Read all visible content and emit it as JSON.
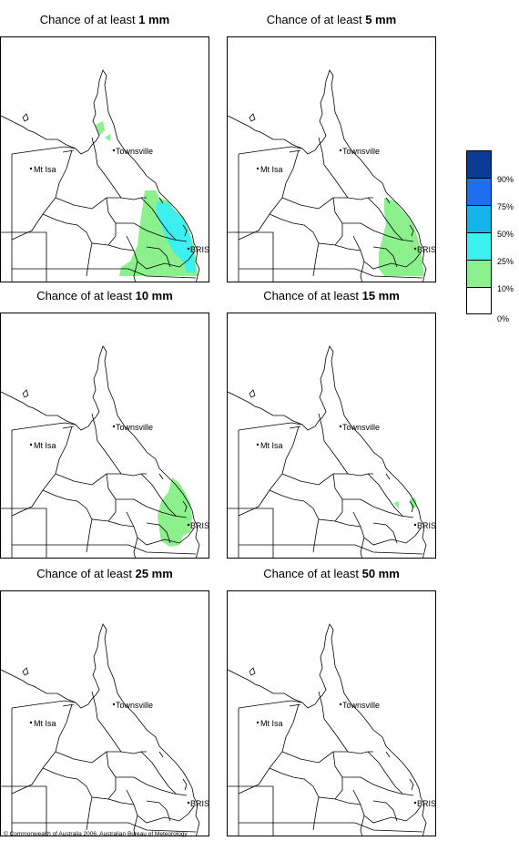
{
  "title_prefix": "Chance of at least",
  "panels": [
    {
      "amount": "1 mm"
    },
    {
      "amount": "5 mm"
    },
    {
      "amount": "10 mm"
    },
    {
      "amount": "15 mm"
    },
    {
      "amount": "25 mm"
    },
    {
      "amount": "50 mm"
    }
  ],
  "places": {
    "townsville": "Townsville",
    "mt_isa": "Mt Isa",
    "bris": "BRIS"
  },
  "legend": {
    "items": [
      {
        "label": "90%",
        "color": "#0a3c96"
      },
      {
        "label": "75%",
        "color": "#1e6ef0"
      },
      {
        "label": "50%",
        "color": "#14b4eb"
      },
      {
        "label": "25%",
        "color": "#3cf0f0"
      },
      {
        "label": "10%",
        "color": "#8cf08c"
      },
      {
        "label": "0%",
        "color": "#ffffff"
      }
    ]
  },
  "copyright": "© Commonwealth of Australia 2006, Australian Bureau of Meteorology"
}
